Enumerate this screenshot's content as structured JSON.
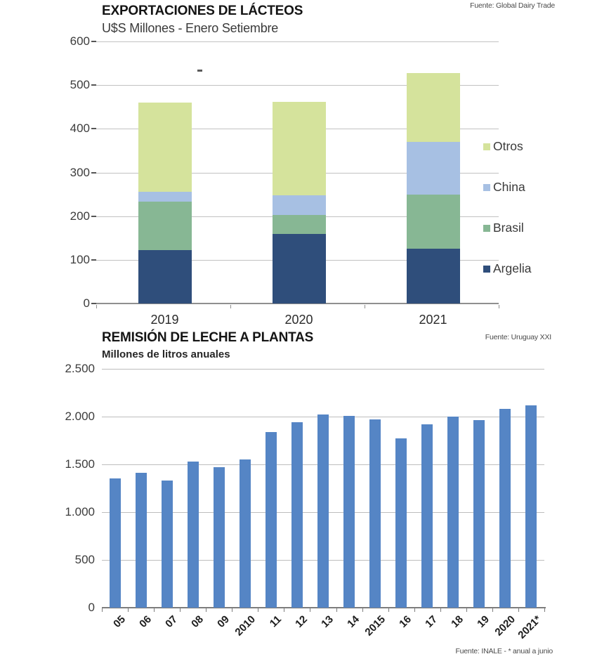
{
  "chart_data": [
    {
      "type": "bar",
      "stacked": true,
      "title": "EXPORTACIONES DE LÁCTEOS",
      "subtitle": "U$S Millones - Enero Setiembre",
      "source": "Fuente: Global Dairy Trade",
      "categories": [
        "2019",
        "2020",
        "2021"
      ],
      "series": [
        {
          "name": "Argelia",
          "color": "#2f4e7b",
          "values": [
            122,
            160,
            126
          ]
        },
        {
          "name": "Brasil",
          "color": "#87b794",
          "values": [
            112,
            42,
            124
          ]
        },
        {
          "name": "China",
          "color": "#a7c0e3",
          "values": [
            21,
            46,
            120
          ]
        },
        {
          "name": "Otros",
          "color": "#d5e39c",
          "values": [
            205,
            214,
            158
          ]
        }
      ],
      "totals": [
        460,
        462,
        528
      ],
      "ylim": [
        0,
        600
      ],
      "yticks": [
        {
          "v": 0,
          "label": "0"
        },
        {
          "v": 100,
          "label": "100"
        },
        {
          "v": 200,
          "label": "200"
        },
        {
          "v": 300,
          "label": "300"
        },
        {
          "v": 400,
          "label": "400"
        },
        {
          "v": 500,
          "label": "500"
        },
        {
          "v": 600,
          "label": "600"
        }
      ],
      "legend": [
        {
          "label": "Otros",
          "color": "#d5e39c"
        },
        {
          "label": "China",
          "color": "#a7c0e3"
        },
        {
          "label": "Brasil",
          "color": "#87b794"
        },
        {
          "label": "Argelia",
          "color": "#2f4e7b"
        }
      ],
      "legend_position": "right",
      "grid": true
    },
    {
      "type": "bar",
      "stacked": false,
      "title": "REMISIÓN DE LECHE A PLANTAS",
      "subtitle": "Millones de litros anuales",
      "source": "Fuente: Uruguay XXI",
      "footnote": "Fuente: INALE  -   * anual a junio",
      "categories": [
        "05",
        "06",
        "07",
        "08",
        "09",
        "2010",
        "11",
        "12",
        "13",
        "14",
        "2015",
        "16",
        "17",
        "18",
        "19",
        "2020",
        "2021*"
      ],
      "values": [
        1350,
        1410,
        1330,
        1530,
        1470,
        1550,
        1840,
        1940,
        2020,
        2010,
        1970,
        1770,
        1920,
        2000,
        1960,
        2080,
        2120
      ],
      "bar_color": "#5585c5",
      "ylim": [
        0,
        2500
      ],
      "yticks": [
        {
          "v": 0,
          "label": "0"
        },
        {
          "v": 500,
          "label": "500"
        },
        {
          "v": 1000,
          "label": "1.000"
        },
        {
          "v": 1500,
          "label": "1.500"
        },
        {
          "v": 2000,
          "label": "2.000"
        },
        {
          "v": 2500,
          "label": "2.500"
        }
      ],
      "legend": [],
      "grid": true
    }
  ],
  "colors": {
    "gridline_top": "#c2c2c2",
    "gridline_bottom": "#bdbdbd",
    "axis_top": "#8f8f8f",
    "axis_bottom": "#7d7d7d",
    "tick_dash": "#555555"
  }
}
